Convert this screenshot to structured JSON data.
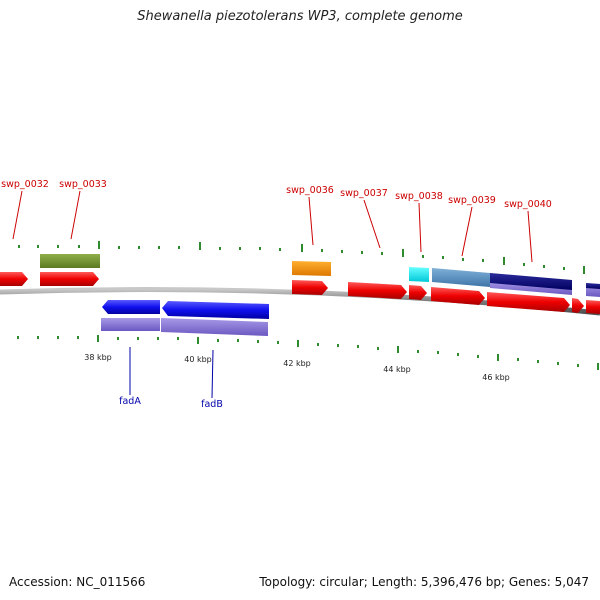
{
  "title": "Shewanella piezotolerans WP3, complete genome",
  "footer": {
    "accession": "Accession: NC_011566",
    "stats": "Topology: circular; Length: 5,396,476 bp; Genes: 5,047"
  },
  "colors": {
    "forward_label": "#cc0000",
    "reverse_label": "#0000aa",
    "tick": "#2e8b2e",
    "backbone": "#808080"
  },
  "kbp_labels": [
    "38 kbp",
    "40 kbp",
    "42 kbp",
    "44 kbp",
    "46 kbp"
  ],
  "forward_gene_labels": [
    "swp_0032",
    "swp_0033",
    "swp_0036",
    "swp_0037",
    "swp_0038",
    "swp_0039",
    "swp_0040"
  ],
  "reverse_gene_labels": [
    "fadA",
    "fadB"
  ]
}
